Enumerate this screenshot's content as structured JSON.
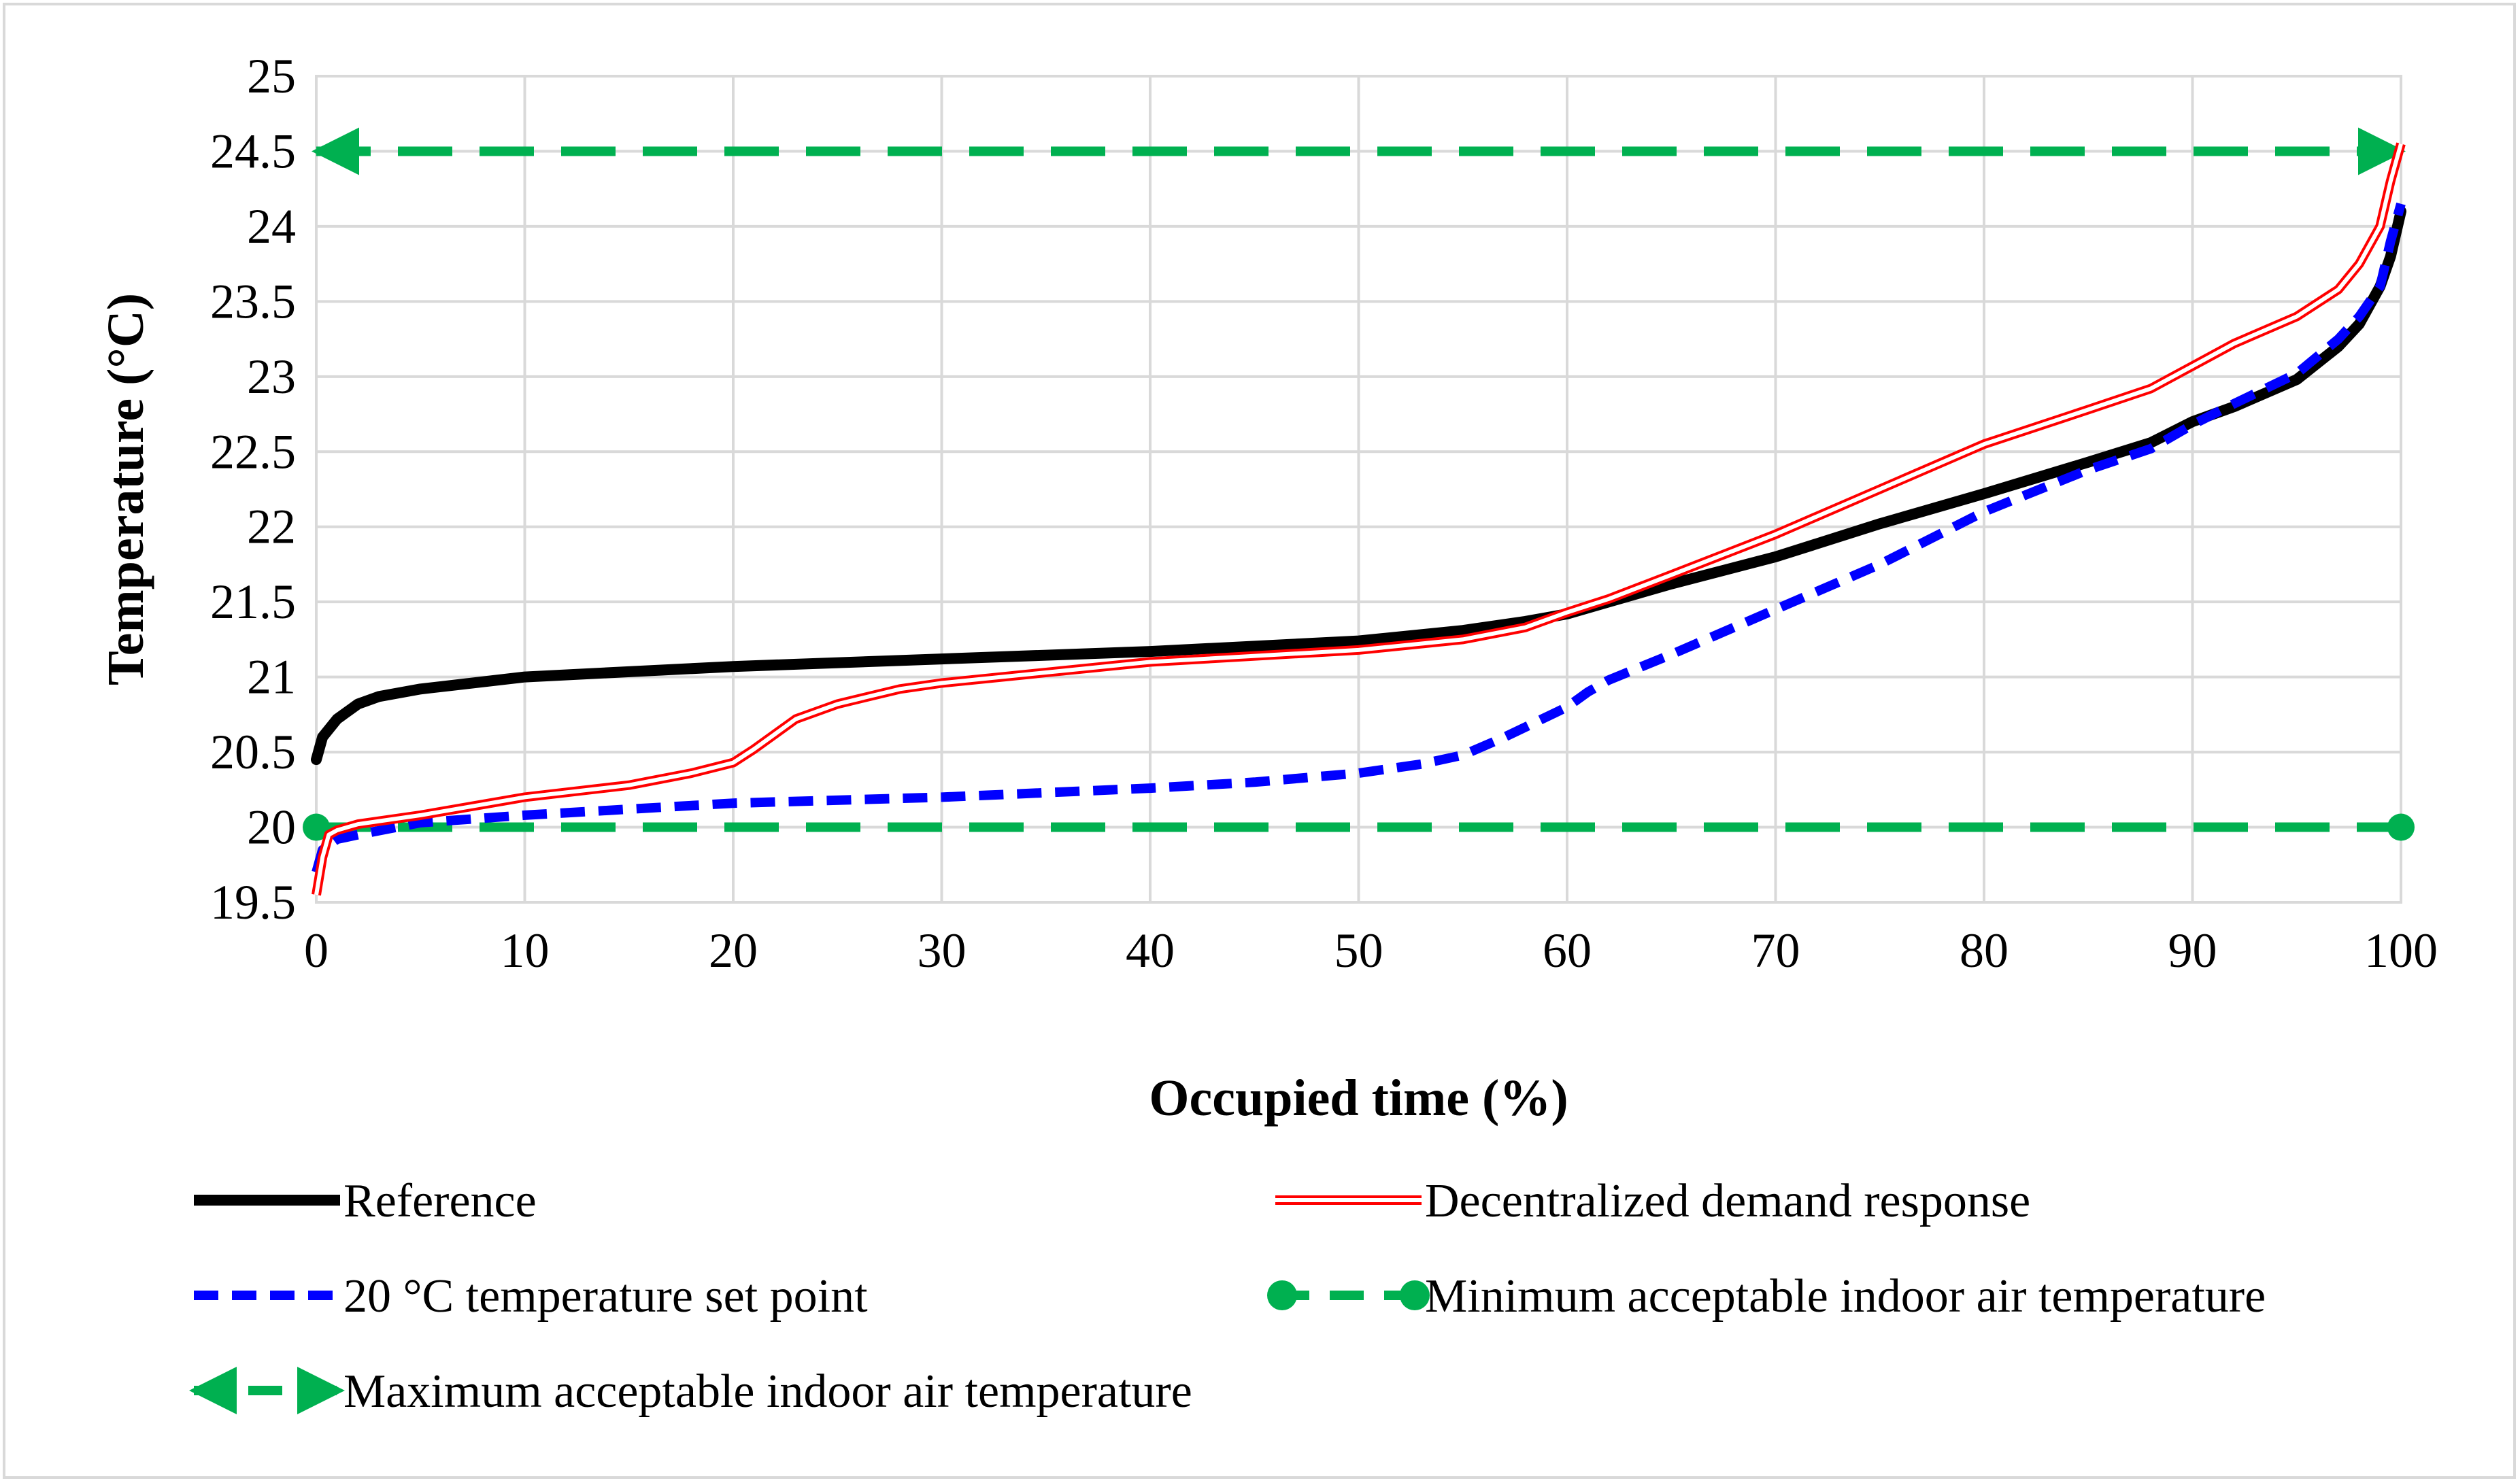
{
  "chart_data": {
    "type": "line",
    "title": "",
    "xlabel": "Occupied time (%)",
    "ylabel": "Temperature (°C)",
    "xlim": [
      0,
      100
    ],
    "ylim": [
      19.5,
      25
    ],
    "x_ticks": [
      "0",
      "10",
      "20",
      "30",
      "40",
      "50",
      "60",
      "70",
      "80",
      "90",
      "100"
    ],
    "y_ticks": [
      "19.5",
      "20",
      "20.5",
      "21",
      "21.5",
      "22",
      "22.5",
      "23",
      "23.5",
      "24",
      "24.5",
      "25"
    ],
    "grid": true,
    "legend_position": "bottom",
    "series": [
      {
        "name": "Reference",
        "color": "#000000",
        "style": "solid-thick",
        "x": [
          0,
          0.3,
          1,
          2,
          3,
          5,
          10,
          20,
          30,
          40,
          50,
          55,
          58,
          60,
          62,
          65,
          70,
          75,
          80,
          85,
          88,
          90,
          92,
          95,
          97,
          98,
          99,
          99.5,
          100
        ],
        "y": [
          20.45,
          20.6,
          20.72,
          20.82,
          20.87,
          20.92,
          21.0,
          21.07,
          21.12,
          21.17,
          21.24,
          21.31,
          21.37,
          21.42,
          21.5,
          21.62,
          21.8,
          22.02,
          22.22,
          22.43,
          22.56,
          22.7,
          22.8,
          22.98,
          23.2,
          23.35,
          23.6,
          23.8,
          24.1
        ]
      },
      {
        "name": "Decentralized demand response",
        "color": "#ff0000",
        "style": "double-line",
        "x": [
          0,
          0.3,
          0.6,
          1,
          2,
          5,
          10,
          15,
          18,
          20,
          21,
          23,
          25,
          28,
          30,
          40,
          50,
          55,
          58,
          60,
          62,
          65,
          70,
          75,
          80,
          85,
          88,
          90,
          92,
          95,
          97,
          98,
          99,
          99.5,
          100
        ],
        "y": [
          19.55,
          19.8,
          19.95,
          19.98,
          20.02,
          20.08,
          20.2,
          20.28,
          20.36,
          20.43,
          20.52,
          20.72,
          20.82,
          20.92,
          20.96,
          21.1,
          21.18,
          21.25,
          21.33,
          21.43,
          21.52,
          21.68,
          21.95,
          22.25,
          22.55,
          22.78,
          22.92,
          23.07,
          23.22,
          23.4,
          23.58,
          23.75,
          24.0,
          24.3,
          24.55
        ]
      },
      {
        "name": "20 °C temperature set point",
        "color": "#0000ff",
        "style": "dashed",
        "x": [
          0,
          0.3,
          1,
          2,
          5,
          10,
          15,
          20,
          30,
          40,
          45,
          50,
          53,
          55,
          57,
          60,
          61,
          62,
          65,
          70,
          75,
          80,
          85,
          88,
          90,
          92,
          95,
          97,
          98,
          99,
          99.5,
          100
        ],
        "y": [
          19.7,
          19.85,
          19.92,
          19.95,
          20.03,
          20.08,
          20.12,
          20.16,
          20.2,
          20.26,
          20.3,
          20.36,
          20.42,
          20.48,
          20.6,
          20.8,
          20.9,
          20.98,
          21.15,
          21.45,
          21.75,
          22.1,
          22.38,
          22.52,
          22.68,
          22.82,
          23.02,
          23.25,
          23.4,
          23.6,
          23.9,
          24.15
        ]
      },
      {
        "name": "Minimum acceptable indoor air temperature",
        "color": "#00b050",
        "style": "dashed-circle-ends",
        "x": [
          0,
          100
        ],
        "y": [
          20,
          20
        ]
      },
      {
        "name": "Maximum acceptable indoor air temperature",
        "color": "#00b050",
        "style": "dashed-arrow-ends",
        "x": [
          0,
          100
        ],
        "y": [
          24.5,
          24.5
        ]
      }
    ]
  }
}
